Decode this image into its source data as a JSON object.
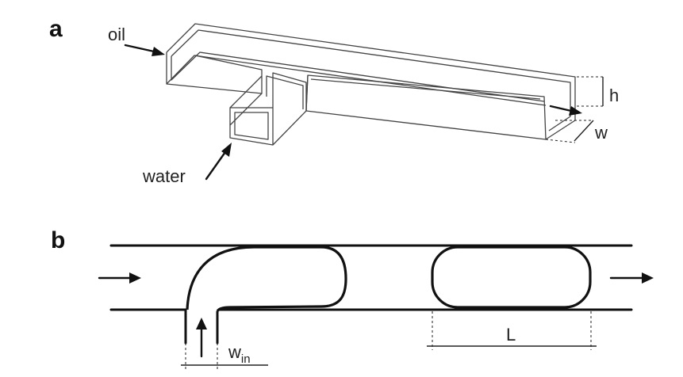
{
  "panel_a": {
    "label": "a",
    "oil_label": "oil",
    "water_label": "water",
    "height_label": "h",
    "width_label": "w"
  },
  "panel_b": {
    "label": "b",
    "inlet_width_label": "w",
    "inlet_width_subscript": "in",
    "slug_length_label": "L"
  },
  "colors": {
    "ink": "#111111",
    "edge": "#444444",
    "background": "#ffffff"
  }
}
